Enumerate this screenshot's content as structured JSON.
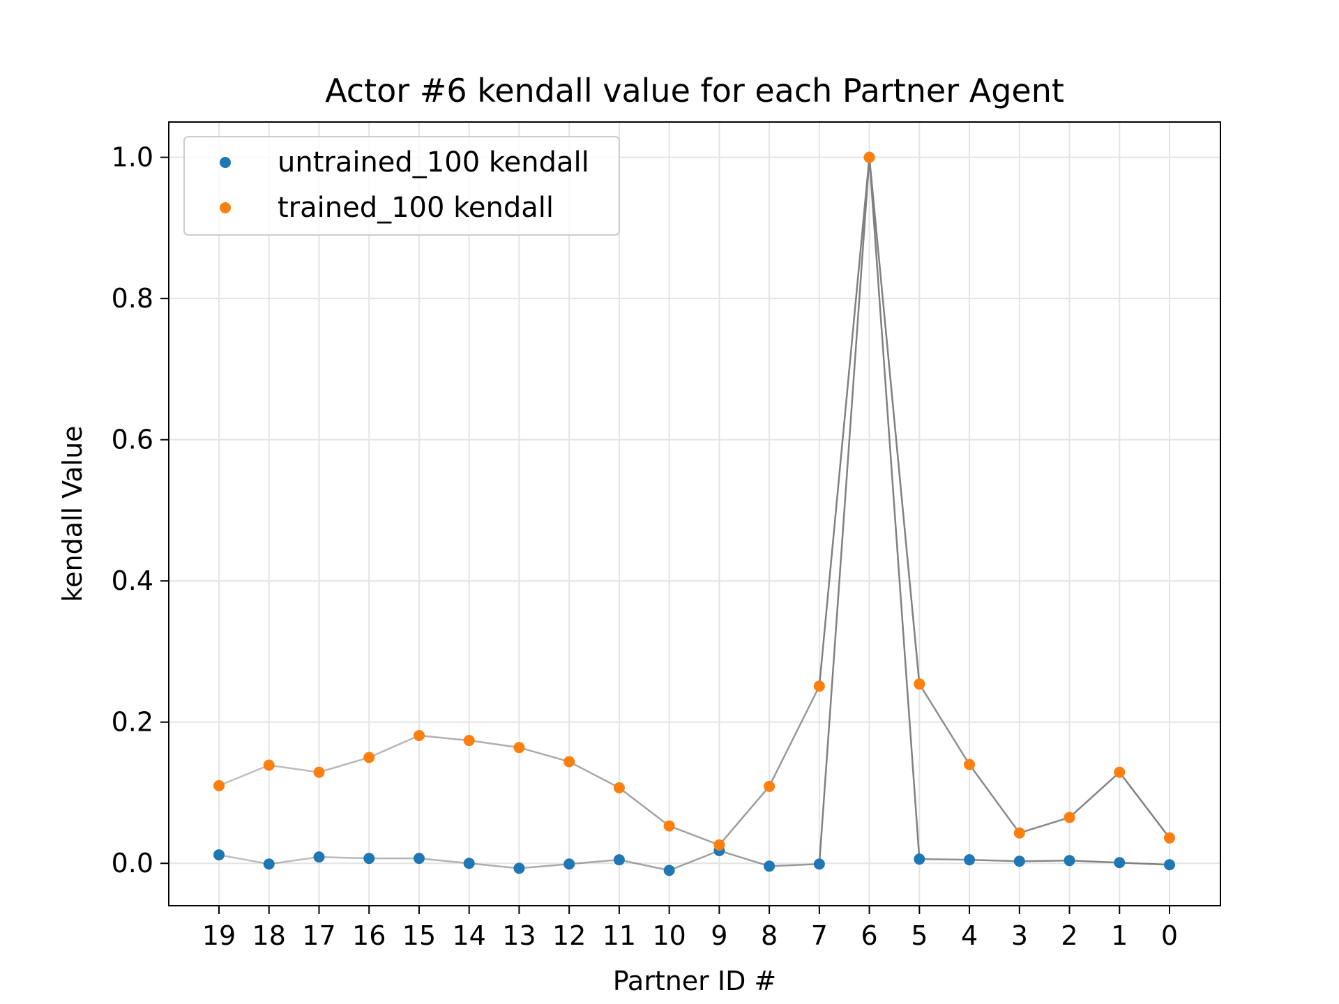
{
  "chart_data": {
    "type": "scatter",
    "title": "Actor #6 kendall value for each Partner Agent",
    "xlabel": "Partner ID #",
    "ylabel": "kendall Value",
    "categories": [
      "19",
      "18",
      "17",
      "16",
      "15",
      "14",
      "13",
      "12",
      "11",
      "10",
      "9",
      "8",
      "7",
      "6",
      "5",
      "4",
      "3",
      "2",
      "1",
      "0"
    ],
    "ylim": [
      -0.06,
      1.05
    ],
    "yticks": [
      0.0,
      0.2,
      0.4,
      0.6,
      0.8,
      1.0
    ],
    "ytick_labels": [
      "0.0",
      "0.2",
      "0.4",
      "0.6",
      "0.8",
      "1.0"
    ],
    "grid": true,
    "legend_position": "top-left",
    "connector_color": "#808080",
    "series": [
      {
        "name": "untrained_100 kendall",
        "color": "#1f77b4",
        "values": [
          0.012,
          -0.001,
          0.009,
          0.007,
          0.007,
          0.0,
          -0.007,
          -0.001,
          0.005,
          -0.01,
          0.018,
          -0.004,
          -0.001,
          1.0,
          0.006,
          0.005,
          0.003,
          0.004,
          0.001,
          -0.002
        ]
      },
      {
        "name": "trained_100 kendall",
        "color": "#ff7f0e",
        "values": [
          0.11,
          0.139,
          0.129,
          0.15,
          0.181,
          0.174,
          0.164,
          0.144,
          0.107,
          0.053,
          0.026,
          0.109,
          0.251,
          1.0,
          0.254,
          0.14,
          0.043,
          0.065,
          0.129,
          0.036
        ]
      }
    ]
  }
}
